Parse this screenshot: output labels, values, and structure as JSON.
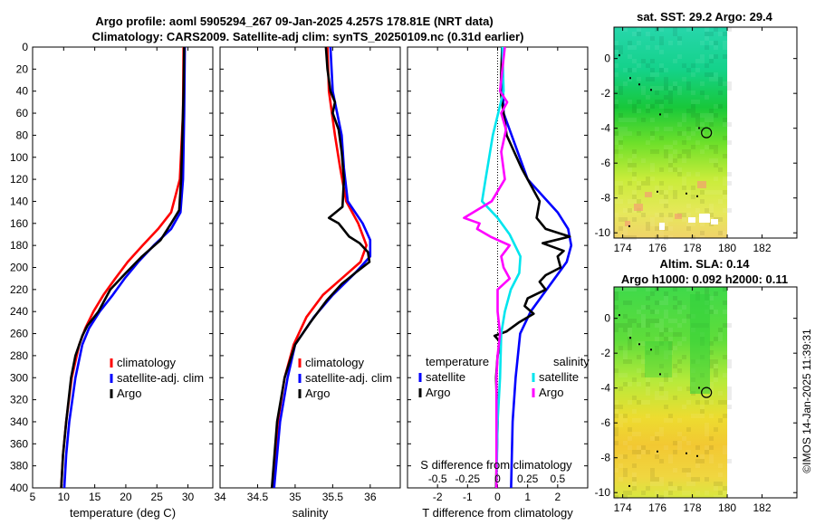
{
  "titles": {
    "main_line1": "Argo profile: aoml 5905294_267 09-Jan-2025 4.257S 178.81E (NRT data)",
    "main_line2": "Climatology: CARS2009. Satellite-adj clim: synTS_20250109.nc (0.31d earlier)",
    "sst_map": "sat. SST: 29.2 Argo: 29.4",
    "sla_map_line1": "Altim. SLA: 0.14",
    "sla_map_line2": "Argo h1000: 0.092 h2000: 0.11",
    "watermark": "©IMOS 14-Jan-2025 11:39:31"
  },
  "colors": {
    "climatology": "#ff0000",
    "satellite": "#0000ff",
    "argo": "#000000",
    "sal_satellite": "#00e5ee",
    "sal_argo": "#ff00ff"
  },
  "chart_data": [
    {
      "type": "line",
      "id": "temperature",
      "xlabel": "temperature (deg C)",
      "xlim": [
        5,
        34
      ],
      "xticks": [
        5,
        10,
        15,
        20,
        25,
        30
      ],
      "ylim": [
        0,
        400
      ],
      "yticks": [
        0,
        20,
        40,
        60,
        80,
        100,
        120,
        140,
        160,
        180,
        200,
        220,
        240,
        260,
        280,
        300,
        320,
        340,
        360,
        380,
        400
      ],
      "legend": [
        "climatology",
        "satellite-adj. clim",
        "Argo"
      ],
      "series": [
        {
          "name": "climatology",
          "color": "#ff0000",
          "depth": [
            0,
            60,
            120,
            150,
            165,
            180,
            195,
            210,
            225,
            240,
            255,
            270,
            300,
            340,
            370,
            400
          ],
          "values": [
            29.3,
            29.2,
            28.7,
            27.3,
            25.2,
            22.7,
            20.3,
            18.3,
            16.4,
            14.8,
            13.5,
            12.5,
            11.3,
            10.4,
            9.9,
            9.6
          ]
        },
        {
          "name": "satellite-adj. clim",
          "color": "#0000ff",
          "depth": [
            0,
            60,
            120,
            150,
            165,
            180,
            195,
            210,
            225,
            240,
            255,
            270,
            300,
            340,
            370,
            400
          ],
          "values": [
            29.5,
            29.4,
            29.2,
            28.8,
            27.3,
            24.5,
            22.0,
            19.8,
            17.9,
            15.8,
            14.1,
            13.0,
            11.9,
            10.9,
            10.4,
            10.1
          ]
        },
        {
          "name": "Argo",
          "color": "#000000",
          "depth": [
            0,
            40,
            80,
            120,
            148,
            160,
            175,
            190,
            205,
            220,
            240,
            253,
            262,
            280,
            300,
            340,
            370,
            400
          ],
          "values": [
            29.4,
            29.3,
            29.1,
            28.9,
            28.6,
            27.3,
            25.6,
            22.6,
            20.0,
            17.5,
            15.6,
            13.8,
            13.0,
            11.9,
            11.2,
            10.4,
            9.9,
            9.6
          ]
        }
      ]
    },
    {
      "type": "line",
      "id": "salinity",
      "xlabel": "salinity",
      "xlim": [
        34,
        36.4
      ],
      "xticks": [
        34,
        34.5,
        35,
        35.5,
        36
      ],
      "ylim": [
        0,
        400
      ],
      "legend": [
        "climatology",
        "satellite-adj. clim",
        "Argo"
      ],
      "series": [
        {
          "name": "climatology",
          "color": "#ff0000",
          "depth": [
            0,
            40,
            80,
            110,
            140,
            160,
            180,
            195,
            210,
            225,
            245,
            270,
            300,
            340,
            400
          ],
          "values": [
            35.43,
            35.45,
            35.53,
            35.6,
            35.68,
            35.84,
            35.95,
            35.87,
            35.62,
            35.37,
            35.15,
            34.98,
            34.86,
            34.77,
            34.7
          ]
        },
        {
          "name": "satellite-adj. clim",
          "color": "#0000ff",
          "depth": [
            0,
            40,
            80,
            110,
            140,
            160,
            175,
            190,
            205,
            225,
            245,
            270,
            300,
            340,
            400
          ],
          "values": [
            35.47,
            35.5,
            35.62,
            35.65,
            35.7,
            35.9,
            36.0,
            36.0,
            35.8,
            35.5,
            35.25,
            35.0,
            34.9,
            34.8,
            34.72
          ]
        },
        {
          "name": "Argo",
          "color": "#000000",
          "depth": [
            0,
            20,
            40,
            50,
            60,
            75,
            95,
            120,
            145,
            155,
            160,
            166,
            172,
            178,
            186,
            195,
            205,
            215,
            230,
            250,
            270,
            300,
            340,
            400
          ],
          "values": [
            35.41,
            35.43,
            35.47,
            35.53,
            35.5,
            35.58,
            35.62,
            35.65,
            35.63,
            35.45,
            35.58,
            35.65,
            35.72,
            35.86,
            35.97,
            35.99,
            35.8,
            35.62,
            35.42,
            35.2,
            35.0,
            34.86,
            34.76,
            34.69
          ]
        }
      ]
    },
    {
      "type": "line",
      "id": "difference",
      "xlabel": "T difference from climatology",
      "xlabel_top": "S difference from climatology",
      "xlim": [
        -3,
        3
      ],
      "xticks": [
        -2,
        -1,
        0,
        1,
        2
      ],
      "sxlim": [
        -0.75,
        0.75
      ],
      "sxticks": [
        -0.5,
        -0.25,
        0,
        0.25,
        0.5
      ],
      "sxtick_labels": [
        "-0.5",
        "-0.25",
        "0",
        "0.25",
        "0.5"
      ],
      "ylim": [
        0,
        400
      ],
      "legend_temperature_title": "temperature",
      "legend_salinity_title": "salinity",
      "legend_items": [
        "satellite",
        "Argo"
      ],
      "series": [
        {
          "name": "T satellite",
          "quantity": "temperature",
          "color": "#0000ff",
          "depth": [
            0,
            60,
            120,
            150,
            165,
            180,
            195,
            210,
            225,
            240,
            260,
            300,
            340,
            400
          ],
          "values": [
            0.15,
            0.2,
            1.0,
            2.0,
            2.35,
            2.45,
            2.3,
            1.9,
            1.5,
            1.1,
            0.75,
            0.6,
            0.5,
            0.45
          ]
        },
        {
          "name": "T Argo",
          "quantity": "temperature",
          "color": "#000000",
          "depth": [
            0,
            40,
            80,
            110,
            140,
            155,
            165,
            172,
            178,
            185,
            190,
            200,
            207,
            213,
            220,
            228,
            235,
            242,
            250,
            258,
            262,
            268,
            280,
            300,
            340,
            400
          ],
          "values": [
            0.15,
            0.1,
            0.3,
            0.8,
            1.4,
            1.3,
            1.6,
            2.4,
            1.5,
            2.2,
            2.0,
            2.1,
            1.6,
            1.4,
            1.6,
            1.0,
            0.9,
            1.2,
            0.7,
            0.3,
            -0.1,
            0.1,
            0.0,
            -0.05,
            0.0,
            -0.05
          ]
        },
        {
          "name": "S satellite",
          "quantity": "salinity",
          "color": "#00e5ee",
          "depth": [
            0,
            40,
            80,
            120,
            140,
            155,
            170,
            190,
            205,
            220,
            240,
            260,
            300,
            340,
            400
          ],
          "values": [
            0.04,
            0.05,
            -0.04,
            -0.1,
            -0.13,
            0.0,
            0.1,
            0.19,
            0.18,
            0.11,
            0.06,
            0.03,
            0.02,
            0.0,
            -0.01
          ]
        },
        {
          "name": "S Argo",
          "quantity": "salinity",
          "color": "#ff00ff",
          "depth": [
            0,
            20,
            40,
            50,
            60,
            75,
            95,
            120,
            140,
            155,
            160,
            165,
            172,
            180,
            190,
            200,
            210,
            220,
            240,
            260,
            280,
            300,
            340,
            400
          ],
          "values": [
            0.06,
            0.04,
            0.02,
            0.08,
            0.03,
            0.07,
            0.03,
            0.06,
            -0.05,
            -0.28,
            -0.15,
            -0.17,
            -0.06,
            0.1,
            0.03,
            0.05,
            0.1,
            0.0,
            0.0,
            0.02,
            0.0,
            -0.01,
            -0.01,
            -0.01
          ]
        }
      ]
    },
    {
      "type": "heatmap",
      "id": "sst_map",
      "title": "sat. SST: 29.2 Argo: 29.4",
      "xlim": [
        173.5,
        184
      ],
      "xticks": [
        174,
        176,
        178,
        180,
        182
      ],
      "ylim": [
        -10.3,
        1.8
      ],
      "yticks": [
        -10,
        -8,
        -6,
        -4,
        -2,
        0
      ],
      "data_extent": {
        "lon": [
          173.5,
          180
        ],
        "lat": [
          -10.3,
          1.8
        ]
      },
      "argo_position": {
        "lon": 178.81,
        "lat": -4.257
      }
    },
    {
      "type": "heatmap",
      "id": "sla_map",
      "title": "Altim. SLA: 0.14",
      "xlim": [
        173.5,
        184
      ],
      "xticks": [
        174,
        176,
        178,
        180,
        182
      ],
      "ylim": [
        -10.3,
        1.8
      ],
      "yticks": [
        -10,
        -8,
        -6,
        -4,
        -2,
        0
      ],
      "data_extent": {
        "lon": [
          173.5,
          180
        ],
        "lat": [
          -10.3,
          1.8
        ]
      },
      "argo_position": {
        "lon": 178.81,
        "lat": -4.257
      }
    }
  ]
}
